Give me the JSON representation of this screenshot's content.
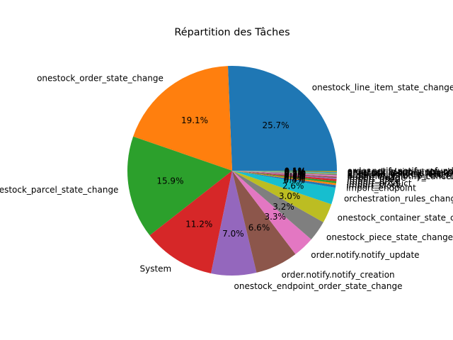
{
  "chart_data": {
    "type": "pie",
    "title": "Répartition des Tâches",
    "start_angle_deg": 0,
    "direction": "counterclockwise",
    "labels": [
      "onestock_line_item_state_change",
      "onestock_order_state_change",
      "onestock_parcel_state_change",
      "System",
      "onestock_endpoint_order_state_change",
      "order.notify.notify_creation",
      "order.notify.notify_update",
      "onestock_piece_state_change",
      "onestock_container_state_change",
      "orchestration_rules_change",
      "import_endpoint",
      "import_stock",
      "import_product",
      "import_price",
      "import_user",
      "import_image",
      "order.notify.notify_cancel",
      "order.notify.notify_return",
      "onestock_delivery_state_change",
      "onestock_return_state_change",
      "order.notify.notify_shipment",
      "onestock_claim_state_change",
      "order.notify.notify_refund"
    ],
    "values": [
      25.7,
      19.1,
      15.9,
      11.2,
      7.0,
      6.6,
      3.3,
      3.2,
      3.0,
      2.6,
      0.4,
      0.3,
      0.3,
      0.3,
      0.2,
      0.2,
      0.2,
      0.2,
      0.1,
      0.1,
      0.1,
      0.1,
      0.1
    ],
    "autopct": [
      "25.7%",
      "19.1%",
      "15.9%",
      "11.2%",
      "7.0%",
      "6.6%",
      "3.3%",
      "3.2%",
      "3.0%",
      "2.6%",
      "0.4%",
      "0.3%",
      "0.3%",
      "0.3%",
      "0.2%",
      "0.2%",
      "0.2%",
      "0.2%",
      "0.1%",
      "0.1%",
      "0.1%",
      "0.1%",
      "0.1%"
    ],
    "colors": [
      "#1f77b4",
      "#ff7f0e",
      "#2ca02c",
      "#d62728",
      "#9467bd",
      "#8c564b",
      "#e377c2",
      "#7f7f7f",
      "#bcbd22",
      "#17becf",
      "#1f77b4",
      "#ff7f0e",
      "#2ca02c",
      "#d62728",
      "#9467bd",
      "#8c564b",
      "#e377c2",
      "#7f7f7f",
      "#bcbd22",
      "#17becf",
      "#1f77b4",
      "#ff7f0e",
      "#2ca02c"
    ]
  }
}
